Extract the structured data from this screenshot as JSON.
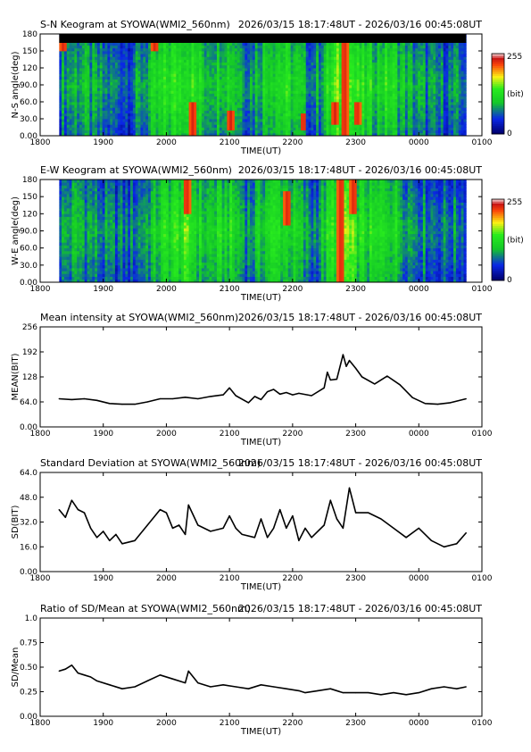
{
  "time_ticks": [
    "1800",
    "1900",
    "2000",
    "2100",
    "2200",
    "2300",
    "0000",
    "0100"
  ],
  "time_label": "TIME(UT)",
  "colorbar": {
    "max_label": "255",
    "unit_label": "(bit)",
    "min_label": "0"
  },
  "panels": [
    {
      "id": "sn",
      "kind": "keogram",
      "title": "S-N Keogram at SYOWA(WMI2_560nm)",
      "range_text": "2026/03/15 18:17:48UT - 2026/03/16 00:45:08UT",
      "ylabel": "N-S angle(deg)",
      "yticks": [
        "0.00",
        "30.0",
        "60.0",
        "90.0",
        "120",
        "150",
        "180"
      ]
    },
    {
      "id": "ew",
      "kind": "keogram",
      "title": "E-W Keogram at SYOWA(WMI2_560nm)",
      "range_text": "2026/03/15 18:17:48UT - 2026/03/16 00:45:08UT",
      "ylabel": "W-E angle(deg)",
      "yticks": [
        "0.00",
        "30.0",
        "60.0",
        "90.0",
        "120",
        "150",
        "180"
      ]
    },
    {
      "id": "mean",
      "kind": "line",
      "title": "Mean intensity at SYOWA(WMI2_560nm)",
      "range_text": "2026/03/15 18:17:48UT - 2026/03/16 00:45:08UT",
      "ylabel": "MEAN(BIT)",
      "yticks": [
        "0.00",
        "64.0",
        "128",
        "192",
        "256"
      ]
    },
    {
      "id": "sd",
      "kind": "line",
      "title": "Standard Deviation at SYOWA(WMI2_560nm)",
      "range_text": "2026/03/15 18:17:48UT - 2026/03/16 00:45:08UT",
      "ylabel": "SD(BIT)",
      "yticks": [
        "0.00",
        "16.0",
        "32.0",
        "48.0",
        "64.0"
      ]
    },
    {
      "id": "ratio",
      "kind": "line",
      "title": "Ratio of SD/Mean at SYOWA(WMI2_560nm)",
      "range_text": "2026/03/15 18:17:48UT - 2026/03/16 00:45:08UT",
      "ylabel": "SD/Mean",
      "yticks": [
        "0.00",
        "0.25",
        "0.50",
        "0.75",
        "1.0"
      ]
    }
  ],
  "chart_data": [
    {
      "type": "heatmap",
      "title": "S-N Keogram at SYOWA(WMI2_560nm)",
      "xlabel": "TIME(UT)",
      "ylabel": "N-S angle(deg)",
      "xlim": [
        18.0,
        25.0
      ],
      "ylim": [
        0,
        180
      ],
      "colorscale_range": [
        0,
        255
      ],
      "colorbar_unit": "(bit)",
      "data_start_time": 18.3,
      "data_end_time": 24.75,
      "bright_features": [
        {
          "time": 18.35,
          "angle_range": [
            150,
            175
          ],
          "level": "high"
        },
        {
          "time": 19.8,
          "angle_range": [
            150,
            175
          ],
          "level": "high"
        },
        {
          "time": 20.4,
          "angle_range": [
            0,
            60
          ],
          "level": "high"
        },
        {
          "time": 21.0,
          "angle_range": [
            10,
            45
          ],
          "level": "high"
        },
        {
          "time": 22.15,
          "angle_range": [
            10,
            40
          ],
          "level": "high"
        },
        {
          "time": 22.65,
          "angle_range": [
            20,
            60
          ],
          "level": "high"
        },
        {
          "time": 22.8,
          "angle_range": [
            0,
            180
          ],
          "level": "high"
        },
        {
          "time": 23.0,
          "angle_range": [
            20,
            60
          ],
          "level": "high"
        }
      ]
    },
    {
      "type": "heatmap",
      "title": "E-W Keogram at SYOWA(WMI2_560nm)",
      "xlabel": "TIME(UT)",
      "ylabel": "W-E angle(deg)",
      "xlim": [
        18.0,
        25.0
      ],
      "ylim": [
        0,
        180
      ],
      "colorscale_range": [
        0,
        255
      ],
      "colorbar_unit": "(bit)",
      "data_start_time": 18.3,
      "data_end_time": 24.75,
      "bright_features": [
        {
          "time": 20.3,
          "angle_range": [
            120,
            180
          ],
          "level": "high"
        },
        {
          "time": 21.9,
          "angle_range": [
            100,
            160
          ],
          "level": "high"
        },
        {
          "time": 22.75,
          "angle_range": [
            0,
            180
          ],
          "level": "high"
        },
        {
          "time": 22.95,
          "angle_range": [
            120,
            180
          ],
          "level": "high"
        }
      ]
    },
    {
      "type": "line",
      "title": "Mean intensity at SYOWA(WMI2_560nm)",
      "xlabel": "TIME(UT)",
      "ylabel": "MEAN(BIT)",
      "xlim": [
        18.0,
        25.0
      ],
      "ylim": [
        0,
        256
      ],
      "x": [
        18.3,
        18.5,
        18.7,
        18.9,
        19.1,
        19.3,
        19.5,
        19.7,
        19.9,
        20.1,
        20.3,
        20.5,
        20.7,
        20.9,
        21.0,
        21.1,
        21.3,
        21.4,
        21.5,
        21.6,
        21.7,
        21.8,
        21.9,
        22.0,
        22.1,
        22.3,
        22.5,
        22.55,
        22.6,
        22.7,
        22.8,
        22.85,
        22.9,
        23.0,
        23.1,
        23.3,
        23.5,
        23.7,
        23.9,
        24.1,
        24.3,
        24.5,
        24.75
      ],
      "y": [
        72,
        70,
        72,
        68,
        60,
        58,
        58,
        64,
        72,
        72,
        76,
        72,
        78,
        82,
        100,
        80,
        62,
        78,
        70,
        90,
        96,
        84,
        88,
        82,
        86,
        80,
        100,
        140,
        120,
        122,
        185,
        155,
        170,
        150,
        128,
        110,
        130,
        108,
        75,
        60,
        58,
        62,
        72
      ]
    },
    {
      "type": "line",
      "title": "Standard Deviation at SYOWA(WMI2_560nm)",
      "xlabel": "TIME(UT)",
      "ylabel": "SD(BIT)",
      "xlim": [
        18.0,
        25.0
      ],
      "ylim": [
        0,
        64
      ],
      "x": [
        18.3,
        18.4,
        18.5,
        18.6,
        18.7,
        18.8,
        18.9,
        19.0,
        19.1,
        19.2,
        19.3,
        19.5,
        19.7,
        19.9,
        20.0,
        20.1,
        20.2,
        20.3,
        20.35,
        20.5,
        20.7,
        20.9,
        21.0,
        21.1,
        21.2,
        21.4,
        21.5,
        21.6,
        21.7,
        21.8,
        21.9,
        22.0,
        22.1,
        22.2,
        22.3,
        22.5,
        22.6,
        22.7,
        22.8,
        22.9,
        23.0,
        23.2,
        23.4,
        23.6,
        23.8,
        24.0,
        24.2,
        24.4,
        24.6,
        24.75
      ],
      "y": [
        40,
        35,
        46,
        40,
        38,
        28,
        22,
        26,
        20,
        24,
        18,
        20,
        30,
        40,
        38,
        28,
        30,
        24,
        43,
        30,
        26,
        28,
        36,
        28,
        24,
        22,
        34,
        22,
        28,
        40,
        28,
        36,
        20,
        28,
        22,
        30,
        46,
        34,
        28,
        54,
        38,
        38,
        34,
        28,
        22,
        28,
        20,
        16,
        18,
        25
      ]
    },
    {
      "type": "line",
      "title": "Ratio of SD/Mean at SYOWA(WMI2_560nm)",
      "xlabel": "TIME(UT)",
      "ylabel": "SD/Mean",
      "xlim": [
        18.0,
        25.0
      ],
      "ylim": [
        0,
        1.0
      ],
      "x": [
        18.3,
        18.4,
        18.5,
        18.6,
        18.7,
        18.8,
        18.9,
        19.1,
        19.3,
        19.5,
        19.7,
        19.9,
        20.1,
        20.3,
        20.35,
        20.5,
        20.7,
        20.9,
        21.1,
        21.3,
        21.5,
        21.7,
        21.9,
        22.1,
        22.2,
        22.4,
        22.6,
        22.8,
        23.0,
        23.2,
        23.4,
        23.6,
        23.8,
        24.0,
        24.2,
        24.4,
        24.6,
        24.75
      ],
      "y": [
        0.46,
        0.48,
        0.52,
        0.44,
        0.42,
        0.4,
        0.36,
        0.32,
        0.28,
        0.3,
        0.36,
        0.42,
        0.38,
        0.34,
        0.46,
        0.34,
        0.3,
        0.32,
        0.3,
        0.28,
        0.32,
        0.3,
        0.28,
        0.26,
        0.24,
        0.26,
        0.28,
        0.24,
        0.24,
        0.24,
        0.22,
        0.24,
        0.22,
        0.24,
        0.28,
        0.3,
        0.28,
        0.3
      ]
    }
  ]
}
